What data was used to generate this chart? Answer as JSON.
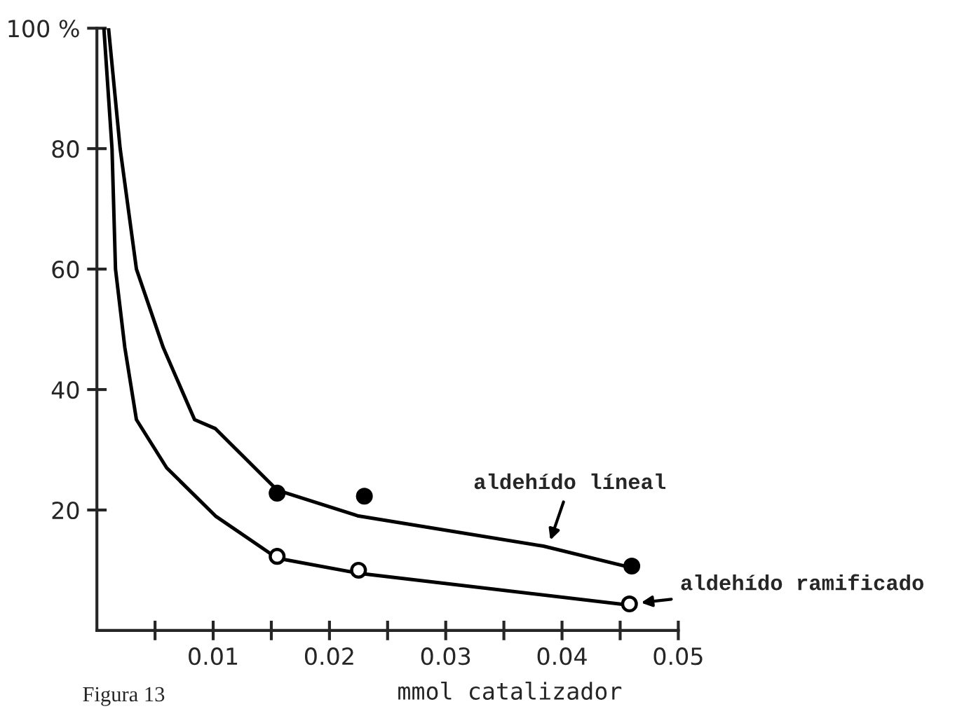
{
  "chart_data": {
    "type": "line",
    "xlabel": "mmol catalizador",
    "xlim": [
      0,
      0.05
    ],
    "ylim": [
      0,
      100
    ],
    "xticks": [
      {
        "value": 0.005,
        "label": null
      },
      0.01,
      {
        "value": 0.015,
        "label": null
      },
      0.02,
      {
        "value": 0.025,
        "label": null
      },
      0.03,
      {
        "value": 0.035,
        "label": null
      },
      0.04,
      {
        "value": 0.045,
        "label": null
      },
      0.05
    ],
    "yticks": [
      20,
      40,
      60,
      80,
      {
        "value": 100,
        "label": "100 %"
      }
    ],
    "grid": false,
    "legend": false,
    "series": [
      {
        "color": "#000000",
        "x": [
          0.001,
          0.002,
          0.0034,
          0.0057,
          0.0084,
          0.0102,
          0.0155,
          0.0225,
          0.0384,
          0.0458
        ],
        "values": [
          100,
          80,
          60,
          47,
          35,
          33.5,
          23.3,
          19,
          14,
          10.5
        ]
      },
      {
        "color": "#000000",
        "x": [
          0.0006,
          0.0013,
          0.0016,
          0.0024,
          0.0034,
          0.006,
          0.0102,
          0.0155,
          0.0225,
          0.0458
        ],
        "values": [
          100,
          80,
          60,
          47,
          35,
          27,
          19,
          12,
          9.5,
          4.2
        ]
      },
      {
        "type": "scatter",
        "color": "#000000",
        "marker": "circle",
        "x": [
          0.0155,
          0.023,
          0.046
        ],
        "values": [
          22.8,
          22.3,
          10.7
        ]
      },
      {
        "type": "scatter",
        "color": "#ffffff",
        "marker": "circle",
        "x": [
          0.0155,
          0.0225,
          0.0458
        ],
        "values": [
          12.3,
          10,
          4.4
        ]
      }
    ],
    "annotations": [
      {
        "text": "aldehído líneal",
        "x": 0.039,
        "y": 15
      },
      {
        "text": "aldehído ramificado",
        "x": 0.0458,
        "y": 4.4
      },
      "Figura 13"
    ]
  }
}
